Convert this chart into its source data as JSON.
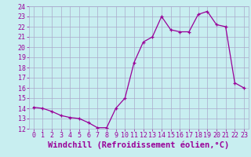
{
  "x": [
    0,
    1,
    2,
    3,
    4,
    5,
    6,
    7,
    8,
    9,
    10,
    11,
    12,
    13,
    14,
    15,
    16,
    17,
    18,
    19,
    20,
    21,
    22,
    23
  ],
  "y": [
    14.1,
    14.0,
    13.7,
    13.3,
    13.1,
    13.0,
    12.6,
    12.1,
    12.1,
    14.0,
    15.0,
    18.5,
    20.5,
    21.0,
    23.0,
    21.7,
    21.5,
    21.5,
    23.2,
    23.5,
    22.2,
    22.0,
    16.5,
    16.0
  ],
  "ylim": [
    12,
    24
  ],
  "xlim": [
    -0.5,
    23.5
  ],
  "yticks": [
    12,
    13,
    14,
    15,
    16,
    17,
    18,
    19,
    20,
    21,
    22,
    23,
    24
  ],
  "xticks": [
    0,
    1,
    2,
    3,
    4,
    5,
    6,
    7,
    8,
    9,
    10,
    11,
    12,
    13,
    14,
    15,
    16,
    17,
    18,
    19,
    20,
    21,
    22,
    23
  ],
  "xlabel": "Windchill (Refroidissement éolien,°C)",
  "line_color": "#990099",
  "marker": "+",
  "bg_color": "#c8eef0",
  "grid_color": "#aaaacc",
  "tick_color": "#990099",
  "tick_fontsize": 6.0,
  "label_fontsize": 7.5
}
